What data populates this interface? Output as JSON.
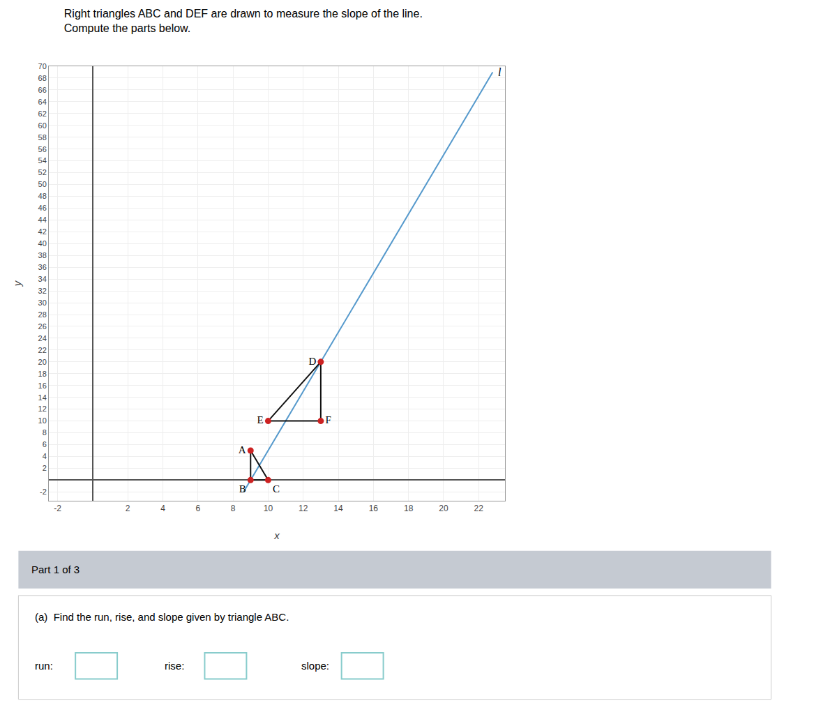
{
  "chart_data": {
    "type": "scatter",
    "title": "Right triangles ABC and DEF are drawn to measure the slope of the line.",
    "subtitle": "Compute the parts below.",
    "xlabel": "x",
    "ylabel": "y",
    "xlim": [
      -2.5,
      23.5
    ],
    "ylim": [
      -3.5,
      70
    ],
    "xticks": [
      -2,
      2,
      4,
      6,
      8,
      10,
      12,
      14,
      16,
      18,
      20,
      22
    ],
    "yticks": [
      -2,
      2,
      4,
      6,
      8,
      10,
      12,
      14,
      16,
      18,
      20,
      22,
      24,
      26,
      28,
      30,
      32,
      34,
      36,
      38,
      40,
      42,
      44,
      46,
      48,
      50,
      52,
      54,
      56,
      58,
      60,
      62,
      64,
      66,
      68,
      70
    ],
    "grid": true,
    "series": [
      {
        "name": "l",
        "type": "line",
        "color": "#5599cc",
        "x": [
          8.6,
          22.8
        ],
        "values": [
          -2,
          69
        ]
      },
      {
        "type": "line",
        "color": "#111111",
        "x": [
          9,
          9,
          10,
          9
        ],
        "values": [
          5,
          0,
          0,
          5
        ]
      },
      {
        "type": "line",
        "color": "#111111",
        "x": [
          13,
          13,
          10,
          13
        ],
        "values": [
          20,
          10,
          10,
          20
        ]
      },
      {
        "type": "scatter",
        "color": "#cc2222",
        "x": [
          9,
          9,
          10,
          13,
          10,
          13
        ],
        "values": [
          5,
          0,
          0,
          20,
          10,
          10
        ],
        "labels": [
          "A",
          "B",
          "C",
          "D",
          "E",
          "F"
        ]
      }
    ],
    "annotations": [
      "Part 1 of 3",
      "(a)  Find the run, rise, and slope given by triangle ABC.",
      "run:",
      "rise:",
      "slope:"
    ]
  }
}
